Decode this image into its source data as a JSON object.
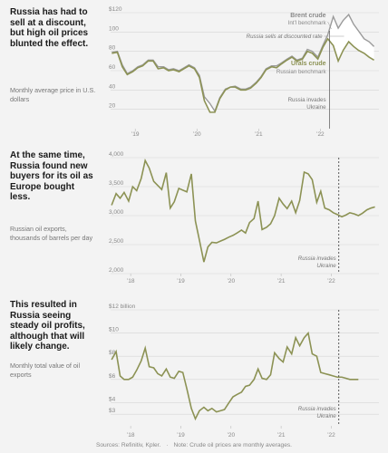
{
  "panels": [
    {
      "caption": "Russia has had to sell at a discount, but high oil prices blunted the effect.",
      "subcaption": "Monthly average price in U.S. dollars"
    },
    {
      "caption": "At the same time, Russia found new buyers for its oil as Europe bought less.",
      "subcaption": "Russian oil exports, thousands of barrels per day"
    },
    {
      "caption": "This resulted in Russia seeing steady oil profits, although that will likely change.",
      "subcaption": "Monthly total value of oil exports"
    }
  ],
  "footer": {
    "sources": "Sources: Refinitiv, Kpler.",
    "note": "Note: Crude oil prices are monthly averages."
  },
  "colors": {
    "urals": "#8c9254",
    "brent": "#9a9a9a",
    "area": "#ffffff",
    "grid": "#d5d5d5",
    "axis_text": "#888888"
  },
  "chart_data": [
    {
      "type": "area",
      "title": "",
      "ylim": [
        0,
        120
      ],
      "y_ticks": [
        "$120",
        "100",
        "80",
        "60",
        "40",
        "20"
      ],
      "y_tick_values": [
        120,
        100,
        80,
        60,
        40,
        20
      ],
      "x_ticks": [
        "’19",
        "’20",
        "’21",
        "’22"
      ],
      "x_tick_values": [
        2019,
        2020,
        2021,
        2022
      ],
      "x_range": [
        2018.6,
        2022.95
      ],
      "x": [
        2018.62,
        2018.71,
        2018.79,
        2018.87,
        2018.96,
        2019.04,
        2019.12,
        2019.21,
        2019.29,
        2019.37,
        2019.46,
        2019.54,
        2019.62,
        2019.71,
        2019.79,
        2019.87,
        2019.96,
        2020.04,
        2020.12,
        2020.21,
        2020.29,
        2020.37,
        2020.46,
        2020.54,
        2020.62,
        2020.71,
        2020.79,
        2020.87,
        2020.96,
        2021.04,
        2021.12,
        2021.21,
        2021.29,
        2021.37,
        2021.46,
        2021.54,
        2021.62,
        2021.71,
        2021.79,
        2021.87,
        2021.96,
        2022.04,
        2022.12,
        2022.21,
        2022.29,
        2022.37,
        2022.46,
        2022.54,
        2022.62,
        2022.71,
        2022.79,
        2022.87
      ],
      "series": [
        {
          "name": "Brent crude",
          "values": [
            79,
            80,
            66,
            57,
            60,
            64,
            66,
            71,
            71,
            64,
            64,
            61,
            62,
            60,
            63,
            66,
            63,
            55,
            33,
            26,
            18,
            32,
            41,
            43,
            44,
            41,
            41,
            43,
            48,
            54,
            62,
            65,
            65,
            68,
            72,
            75,
            71,
            73,
            82,
            80,
            74,
            86,
            97,
            116,
            104,
            112,
            118,
            108,
            101,
            93,
            90,
            85
          ]
        },
        {
          "name": "Urals crude",
          "values": [
            78,
            79,
            64,
            56,
            59,
            63,
            65,
            70,
            70,
            62,
            63,
            60,
            61,
            59,
            62,
            65,
            62,
            53,
            29,
            17,
            17,
            31,
            40,
            43,
            43,
            40,
            40,
            42,
            47,
            53,
            61,
            64,
            63,
            67,
            71,
            74,
            70,
            72,
            80,
            78,
            72,
            84,
            93,
            86,
            70,
            81,
            90,
            85,
            81,
            78,
            74,
            71
          ]
        }
      ],
      "annotations": {
        "brent_label": "Brent crude",
        "brent_sub": "Int’l benchmark",
        "discount_label": "Russia sells at discounted rate",
        "urals_label": "Urals crude",
        "urals_sub": "Russian benchmark",
        "event_label_1": "Russia invades",
        "event_label_2": "Ukraine",
        "event_x": 2022.15
      }
    },
    {
      "type": "line",
      "title": "",
      "ylim": [
        2000,
        4000
      ],
      "y_ticks": [
        "4,000",
        "3,500",
        "3,000",
        "2,500",
        "2,000"
      ],
      "y_tick_values": [
        4000,
        3500,
        3000,
        2500,
        2000
      ],
      "x_ticks": [
        "’18",
        "’19",
        "’20",
        "’21",
        "’22"
      ],
      "x_tick_values": [
        2018,
        2019,
        2020,
        2021,
        2022
      ],
      "x_range": [
        2017.6,
        2022.95
      ],
      "x": [
        2017.62,
        2017.71,
        2017.79,
        2017.87,
        2017.96,
        2018.04,
        2018.12,
        2018.21,
        2018.29,
        2018.37,
        2018.46,
        2018.54,
        2018.62,
        2018.71,
        2018.79,
        2018.87,
        2018.96,
        2019.04,
        2019.12,
        2019.21,
        2019.29,
        2019.37,
        2019.46,
        2019.54,
        2019.62,
        2019.71,
        2019.79,
        2019.87,
        2019.96,
        2020.04,
        2020.12,
        2020.21,
        2020.29,
        2020.37,
        2020.46,
        2020.54,
        2020.62,
        2020.71,
        2020.79,
        2020.87,
        2020.96,
        2021.04,
        2021.12,
        2021.21,
        2021.29,
        2021.37,
        2021.46,
        2021.54,
        2021.62,
        2021.71,
        2021.79,
        2021.87,
        2021.96,
        2022.04,
        2022.12,
        2022.21,
        2022.29,
        2022.37,
        2022.46,
        2022.54,
        2022.62,
        2022.71,
        2022.79,
        2022.87
      ],
      "series": [
        {
          "name": "",
          "values": [
            3180,
            3380,
            3300,
            3400,
            3250,
            3500,
            3430,
            3640,
            3950,
            3820,
            3590,
            3520,
            3450,
            3740,
            3130,
            3240,
            3470,
            3440,
            3410,
            3720,
            2910,
            2580,
            2200,
            2460,
            2540,
            2530,
            2560,
            2590,
            2630,
            2660,
            2700,
            2750,
            2700,
            2880,
            2950,
            3250,
            2760,
            2800,
            2860,
            3000,
            3300,
            3200,
            3120,
            3250,
            3050,
            3260,
            3750,
            3720,
            3620,
            3230,
            3420,
            3130,
            3100,
            3050,
            3020,
            2980,
            3010,
            3050,
            3030,
            3000,
            3040,
            3100,
            3130,
            3150
          ]
        }
      ],
      "annotations": {
        "event_label_1": "Russia invades",
        "event_label_2": "Ukraine",
        "event_x": 2022.15
      }
    },
    {
      "type": "line",
      "title": "",
      "ylim": [
        2,
        12
      ],
      "y_ticks": [
        "$12 billion",
        "$10",
        "$8",
        "$6",
        "$4",
        "$3"
      ],
      "y_tick_values": [
        12,
        10,
        8,
        6,
        4,
        3
      ],
      "x_ticks": [
        "’18",
        "’19",
        "’20",
        "’21",
        "’22"
      ],
      "x_tick_values": [
        2018,
        2019,
        2020,
        2021,
        2022
      ],
      "x_range": [
        2017.6,
        2022.95
      ],
      "x": [
        2017.62,
        2017.71,
        2017.79,
        2017.87,
        2017.96,
        2018.04,
        2018.12,
        2018.21,
        2018.29,
        2018.37,
        2018.46,
        2018.54,
        2018.62,
        2018.71,
        2018.79,
        2018.87,
        2018.96,
        2019.04,
        2019.12,
        2019.21,
        2019.29,
        2019.37,
        2019.46,
        2019.54,
        2019.62,
        2019.71,
        2019.79,
        2019.87,
        2019.96,
        2020.04,
        2020.12,
        2020.21,
        2020.29,
        2020.37,
        2020.46,
        2020.54,
        2020.62,
        2020.71,
        2020.79,
        2020.87,
        2020.96,
        2021.04,
        2021.12,
        2021.21,
        2021.29,
        2021.37,
        2021.46,
        2021.54,
        2021.62,
        2021.71,
        2021.79,
        2021.87,
        2021.96,
        2022.04,
        2022.12,
        2022.21,
        2022.29,
        2022.37,
        2022.46,
        2022.54
      ],
      "series": [
        {
          "name": "",
          "values": [
            7.7,
            8.4,
            6.3,
            6.0,
            6.0,
            6.2,
            6.8,
            7.6,
            8.7,
            7.1,
            7.0,
            6.5,
            6.3,
            6.9,
            6.2,
            6.1,
            6.7,
            6.6,
            5.2,
            3.5,
            2.6,
            3.3,
            3.6,
            3.3,
            3.5,
            3.2,
            3.3,
            3.4,
            4.0,
            4.5,
            4.7,
            4.9,
            5.4,
            5.5,
            6.0,
            6.9,
            6.1,
            6.0,
            6.4,
            8.3,
            7.8,
            7.5,
            8.8,
            8.2,
            9.6,
            8.9,
            9.6,
            10.0,
            8.2,
            8.0,
            6.6,
            6.5,
            6.4,
            6.3,
            6.2,
            6.2,
            6.1,
            6.0,
            6.0,
            6.0
          ]
        }
      ],
      "annotations": {
        "event_label_1": "Russia invades",
        "event_label_2": "Ukraine",
        "event_x": 2022.15
      }
    }
  ]
}
